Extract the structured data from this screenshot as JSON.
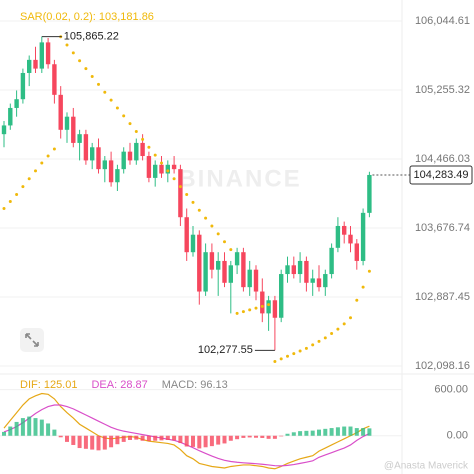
{
  "chart_data": [
    {
      "type": "candlestick",
      "watermark": "BINANCE",
      "up_color": "#2ebd85",
      "down_color": "#f6465d",
      "grid": true,
      "ylim": [
        102029.53,
        106284.83
      ],
      "yticks": [
        {
          "value": 106044.61,
          "label": "106,044.61"
        },
        {
          "value": 105255.32,
          "label": "105,255.32"
        },
        {
          "value": 104466.03,
          "label": "104,466.03"
        },
        {
          "value": 103676.74,
          "label": "103,676.74"
        },
        {
          "value": 102887.45,
          "label": "102,887.45"
        },
        {
          "value": 102098.16,
          "label": "102,098.16"
        }
      ],
      "open": [
        104750,
        104850,
        105050,
        105150,
        105450,
        105600,
        105500,
        105800,
        105550,
        105200,
        104800,
        104950,
        104650,
        104750,
        104450,
        104600,
        104350,
        104450,
        104200,
        104350,
        104550,
        104450,
        104650,
        104500,
        104250,
        104400,
        104300,
        104400,
        104350,
        103800,
        103400,
        103600,
        102950,
        103400,
        103200,
        103300,
        103050,
        103250,
        103400,
        103000,
        103200,
        102950,
        102700,
        102850,
        102650,
        103150,
        103250,
        103150,
        103300,
        103050,
        103100,
        103000,
        103150,
        103450,
        103700,
        103600,
        103500,
        103300,
        103850
      ],
      "high": [
        104900,
        105100,
        105250,
        105500,
        105650,
        105750,
        105865.22,
        105850,
        105600,
        105300,
        105000,
        105050,
        104800,
        104800,
        104650,
        104700,
        104500,
        104550,
        104400,
        104600,
        104650,
        104700,
        104750,
        104550,
        104450,
        104500,
        104450,
        104500,
        104400,
        103900,
        103700,
        103650,
        103500,
        103500,
        103400,
        103400,
        103300,
        103450,
        103450,
        103300,
        103250,
        103100,
        102900,
        102900,
        103200,
        103350,
        103350,
        103400,
        103350,
        103200,
        103250,
        103200,
        103500,
        103800,
        103750,
        103700,
        103550,
        103900,
        104320
      ],
      "low": [
        104600,
        104800,
        104950,
        105100,
        105300,
        105450,
        105450,
        105500,
        105100,
        104700,
        104650,
        104600,
        104450,
        104400,
        104350,
        104300,
        104200,
        104150,
        104100,
        104300,
        104400,
        104400,
        104450,
        104200,
        104150,
        104250,
        104200,
        104300,
        103700,
        103300,
        103350,
        102800,
        102900,
        103100,
        102900,
        103000,
        102700,
        103150,
        102950,
        102900,
        102850,
        102600,
        102500,
        102277.55,
        102600,
        103050,
        103100,
        103050,
        102950,
        102900,
        102950,
        102900,
        103100,
        103400,
        103500,
        103400,
        103200,
        103250,
        103800
      ],
      "close": [
        104850,
        105050,
        105150,
        105450,
        105600,
        105500,
        105800,
        105550,
        105200,
        104800,
        104950,
        104650,
        104750,
        104450,
        104600,
        104350,
        104450,
        104200,
        104350,
        104550,
        104450,
        104650,
        104500,
        104250,
        104400,
        104300,
        104400,
        104350,
        103800,
        103400,
        103600,
        102950,
        103400,
        103200,
        103300,
        103050,
        103250,
        103400,
        103000,
        103200,
        102950,
        102700,
        102850,
        102650,
        103150,
        103250,
        103150,
        103300,
        103050,
        103100,
        103000,
        103150,
        103450,
        103700,
        103600,
        103500,
        103300,
        103850,
        104283.49
      ],
      "overlays": [
        {
          "name": "SAR(0.02, 0.2): 103,181.86",
          "color": "#f0b90b",
          "values": [
            103900,
            103980,
            104060,
            104150,
            104240,
            104330,
            104420,
            104500,
            104580,
            105865,
            105770,
            105680,
            105590,
            105500,
            105410,
            105320,
            105230,
            105140,
            105050,
            104960,
            104870,
            104780,
            104690,
            104600,
            104510,
            104420,
            104330,
            104240,
            104150,
            104060,
            103970,
            103880,
            103790,
            103700,
            103610,
            103520,
            103430,
            102700,
            102720,
            102740,
            102760,
            102780,
            102800,
            102150,
            102180,
            102210,
            102240,
            102270,
            102300,
            102340,
            102380,
            102420,
            102470,
            102520,
            102580,
            102650,
            102850,
            103000,
            103181.86
          ]
        }
      ],
      "annotations": [
        {
          "value": 105865.22,
          "label": "105,865.22"
        },
        {
          "value": 102277.55,
          "label": "102,277.55"
        }
      ],
      "last_price": {
        "value": 104283.49,
        "label": "104,283.49"
      }
    },
    {
      "type": "macd",
      "watermark": "@Anasta Maverick",
      "up_color": "#2ebd85",
      "down_color": "#f6465d",
      "ylim": [
        -498,
        752
      ],
      "yticks": [
        {
          "value": 600,
          "label": "600.00"
        },
        {
          "value": 0,
          "label": "0.00"
        }
      ],
      "series": [
        {
          "name": "DIF: 125.01",
          "color": "#e6a817",
          "values": [
            100,
            200,
            300,
            400,
            480,
            520,
            550,
            540,
            480,
            380,
            300,
            230,
            150,
            100,
            50,
            0,
            -30,
            -40,
            -30,
            -20,
            -10,
            -20,
            -50,
            -70,
            -80,
            -90,
            -100,
            -120,
            -180,
            -260,
            -300,
            -360,
            -380,
            -400,
            -410,
            -420,
            -400,
            -390,
            -380,
            -380,
            -390,
            -400,
            -420,
            -430,
            -400,
            -360,
            -330,
            -300,
            -280,
            -260,
            -200,
            -160,
            -120,
            -80,
            -40,
            0,
            40,
            90,
            125.01
          ]
        },
        {
          "name": "DEA: 28.87",
          "color": "#d94fc9",
          "values": [
            50,
            80,
            120,
            170,
            230,
            290,
            340,
            380,
            400,
            400,
            380,
            350,
            310,
            270,
            230,
            190,
            150,
            110,
            80,
            60,
            45,
            30,
            15,
            0,
            -15,
            -30,
            -45,
            -60,
            -85,
            -120,
            -155,
            -195,
            -230,
            -265,
            -295,
            -320,
            -335,
            -345,
            -352,
            -358,
            -364,
            -371,
            -380,
            -390,
            -392,
            -386,
            -375,
            -360,
            -344,
            -327,
            -280,
            -250,
            -220,
            -190,
            -160,
            -120,
            -60,
            -10,
            28.87
          ]
        },
        {
          "name": "MACD: 96.13",
          "color": "#888888",
          "kind": "histogram",
          "values": [
            50,
            120,
            180,
            230,
            250,
            230,
            210,
            160,
            80,
            -20,
            -80,
            -120,
            -160,
            -170,
            -180,
            -190,
            -180,
            -150,
            -110,
            -80,
            -55,
            -50,
            -65,
            -70,
            -65,
            -60,
            -55,
            -60,
            -95,
            -140,
            -145,
            -165,
            -150,
            -135,
            -115,
            -100,
            -65,
            -45,
            -28,
            -22,
            -26,
            -29,
            -40,
            -40,
            -8,
            26,
            45,
            60,
            64,
            67,
            80,
            90,
            100,
            110,
            120,
            120,
            100,
            100,
            96.13
          ]
        }
      ]
    }
  ]
}
